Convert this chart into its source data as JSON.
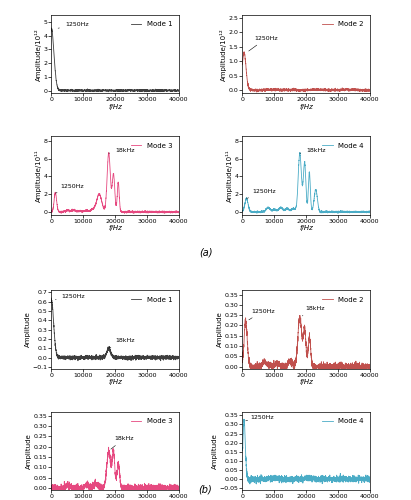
{
  "figure_size": [
    4.11,
    5.0
  ],
  "dpi": 100,
  "panel_a_label": "(a)",
  "panel_b_label": "(b)",
  "subplots": {
    "a": {
      "mode1": {
        "color": "#3d3d3d",
        "label": "Mode 1",
        "ylim": [
          -0.2,
          5.5
        ],
        "yticks": [
          0,
          1,
          2,
          3,
          4,
          5
        ],
        "ylabel": "Amplitude/10¹²",
        "peak1_x": 1250,
        "peak1_y": 4.5,
        "peak1_label": "1250Hz",
        "has_18k": false
      },
      "mode2": {
        "color": "#c0504d",
        "label": "Mode 2",
        "ylim": [
          -0.1,
          2.6
        ],
        "yticks": [
          0,
          0.5,
          1.0,
          1.5,
          2.0,
          2.5
        ],
        "ylabel": "Amplitude/10¹²",
        "peak1_x": 1250,
        "peak1_y": 1.3,
        "peak1_label": "1250Hz",
        "has_18k": false
      },
      "mode3": {
        "color": "#e64980",
        "label": "Mode 3",
        "ylim": [
          -0.3,
          8.5
        ],
        "yticks": [
          0,
          2,
          4,
          6,
          8
        ],
        "ylabel": "Amplitude/10¹¹",
        "peak1_x": 1250,
        "peak1_y": 2.1,
        "peak1_label": "1250Hz",
        "peak2_x": 18000,
        "peak2_y": 6.6,
        "peak2_label": "18kHz",
        "has_18k": true
      },
      "mode4": {
        "color": "#4bacc6",
        "label": "Mode 4",
        "ylim": [
          -0.3,
          8.5
        ],
        "yticks": [
          0,
          2,
          4,
          6,
          8
        ],
        "ylabel": "Amplitude/10¹¹",
        "peak1_x": 1250,
        "peak1_y": 1.5,
        "peak1_label": "1250Hz",
        "peak2_x": 18000,
        "peak2_y": 6.6,
        "peak2_label": "18kHz",
        "has_18k": true
      }
    },
    "b": {
      "mode1": {
        "color": "#3d3d3d",
        "label": "Mode 1",
        "ylim": [
          -0.12,
          0.72
        ],
        "yticks": [
          -0.1,
          0.0,
          0.1,
          0.2,
          0.3,
          0.4,
          0.5,
          0.6,
          0.7
        ],
        "ylabel": "Amplitude",
        "peak1_x": 1250,
        "peak1_y": 0.62,
        "peak1_label": "1250Hz",
        "peak2_x": 18000,
        "peak2_y": 0.1,
        "peak2_label": "18kHz",
        "has_18k": true
      },
      "mode2": {
        "color": "#c0504d",
        "label": "Mode 2",
        "ylim": [
          -0.01,
          0.37
        ],
        "yticks": [
          0.0,
          0.05,
          0.1,
          0.15,
          0.2,
          0.25,
          0.3,
          0.35
        ],
        "ylabel": "Amplitude",
        "peak1_x": 1250,
        "peak1_y": 0.22,
        "peak1_label": "1250Hz",
        "peak2_x": 18000,
        "peak2_y": 0.24,
        "peak2_label": "18kHz",
        "has_18k": true
      },
      "mode3": {
        "color": "#e64980",
        "label": "Mode 3",
        "ylim": [
          -0.01,
          0.37
        ],
        "yticks": [
          0.0,
          0.05,
          0.1,
          0.15,
          0.2,
          0.25,
          0.3,
          0.35
        ],
        "ylabel": "Amplitude",
        "peak2_x": 18000,
        "peak2_y": 0.18,
        "peak2_label": "18kHz",
        "has_18k": true,
        "has_1250": false
      },
      "mode4": {
        "color": "#4bacc6",
        "label": "Mode 4",
        "ylim": [
          -0.06,
          0.37
        ],
        "yticks": [
          -0.05,
          0.0,
          0.05,
          0.1,
          0.15,
          0.2,
          0.25,
          0.3,
          0.35
        ],
        "ylabel": "Amplitude",
        "peak1_x": 1250,
        "peak1_y": 0.32,
        "peak1_label": "1250Hz",
        "has_18k": false,
        "has_1250": true
      }
    }
  },
  "xlim": [
    0,
    40000
  ],
  "xticks": [
    0,
    10000,
    20000,
    30000,
    40000
  ],
  "xlabel": "f/Hz",
  "xlabel_italic": true
}
